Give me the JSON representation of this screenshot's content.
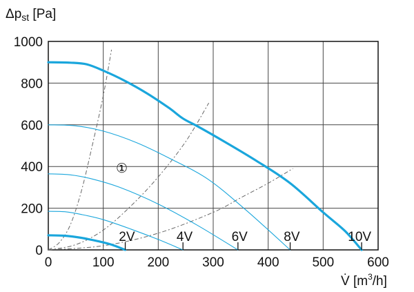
{
  "chart_data": {
    "type": "line",
    "ylabel": {
      "symbol": "Δp",
      "sub": "st",
      "unit": " [Pa]"
    },
    "xlabel": {
      "symbol": "V̇",
      "unit": " [m",
      "sup": "3",
      "tail": "/h]"
    },
    "xlim": [
      0,
      600
    ],
    "ylim": [
      0,
      1000
    ],
    "xticks": [
      0,
      100,
      200,
      300,
      400,
      500,
      600
    ],
    "yticks": [
      0,
      200,
      400,
      600,
      800,
      1000
    ],
    "grid": true,
    "colors": {
      "fan": "#1aa6dc",
      "system": "#666666",
      "grid": "#444444"
    },
    "annotation": "①",
    "fan_curves": [
      {
        "label": "2V",
        "style": "thick",
        "points": [
          [
            0,
            70
          ],
          [
            30,
            68
          ],
          [
            60,
            58
          ],
          [
            90,
            42
          ],
          [
            115,
            25
          ],
          [
            140,
            0
          ]
        ]
      },
      {
        "label": "4V",
        "style": "thin",
        "points": [
          [
            0,
            185
          ],
          [
            30,
            183
          ],
          [
            60,
            170
          ],
          [
            100,
            145
          ],
          [
            150,
            100
          ],
          [
            200,
            50
          ],
          [
            245,
            0
          ]
        ]
      },
      {
        "label": "6V",
        "style": "thin",
        "points": [
          [
            0,
            365
          ],
          [
            40,
            360
          ],
          [
            80,
            340
          ],
          [
            130,
            300
          ],
          [
            200,
            220
          ],
          [
            270,
            120
          ],
          [
            345,
            0
          ]
        ]
      },
      {
        "label": "8V",
        "style": "thin",
        "points": [
          [
            0,
            600
          ],
          [
            50,
            595
          ],
          [
            100,
            570
          ],
          [
            160,
            515
          ],
          [
            220,
            440
          ],
          [
            290,
            340
          ],
          [
            360,
            190
          ],
          [
            440,
            0
          ]
        ]
      },
      {
        "label": "10V",
        "style": "thick",
        "points": [
          [
            0,
            900
          ],
          [
            40,
            898
          ],
          [
            70,
            890
          ],
          [
            100,
            860
          ],
          [
            140,
            810
          ],
          [
            180,
            750
          ],
          [
            220,
            680
          ],
          [
            245,
            630
          ],
          [
            270,
            595
          ],
          [
            320,
            520
          ],
          [
            380,
            425
          ],
          [
            440,
            320
          ],
          [
            500,
            180
          ],
          [
            540,
            90
          ],
          [
            570,
            0
          ]
        ]
      }
    ],
    "system_curves": [
      {
        "points": [
          [
            0,
            0
          ],
          [
            20,
            35
          ],
          [
            40,
            120
          ],
          [
            60,
            280
          ],
          [
            80,
            500
          ],
          [
            100,
            740
          ],
          [
            115,
            960
          ]
        ]
      },
      {
        "points": [
          [
            0,
            0
          ],
          [
            50,
            25
          ],
          [
            100,
            95
          ],
          [
            150,
            210
          ],
          [
            200,
            350
          ],
          [
            250,
            520
          ],
          [
            292,
            705
          ]
        ]
      },
      {
        "points": [
          [
            0,
            0
          ],
          [
            100,
            20
          ],
          [
            200,
            80
          ],
          [
            300,
            180
          ],
          [
            350,
            250
          ],
          [
            400,
            320
          ],
          [
            445,
            390
          ]
        ]
      }
    ]
  }
}
